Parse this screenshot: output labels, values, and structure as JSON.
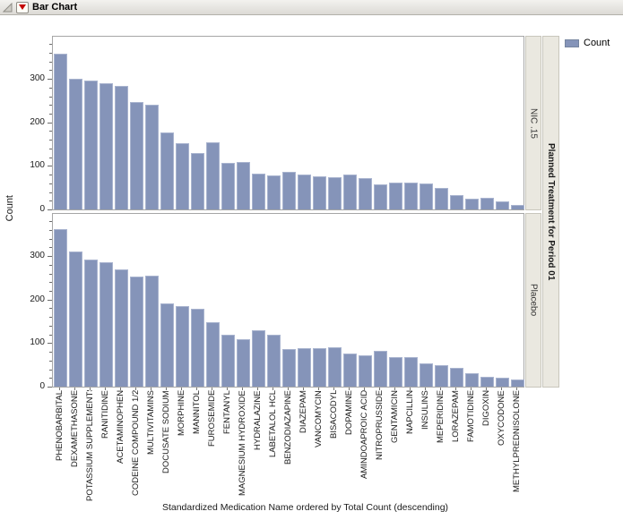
{
  "window": {
    "title": "Bar Chart"
  },
  "legend": {
    "label": "Count",
    "swatch_color": "#8594b9"
  },
  "panel_strip": {
    "title": "Planned Treatment for Period 01",
    "panels": [
      "NIC .15",
      "Placebo"
    ]
  },
  "chart_data": {
    "type": "bar",
    "title": "Bar Chart",
    "xlabel": "Standardized Medication Name ordered by Total Count (descending)",
    "ylabel": "Count",
    "ylim": [
      0,
      397
    ],
    "yticks": [
      0,
      100,
      200,
      300
    ],
    "minor_tick_step": 20,
    "grid": false,
    "legend_position": "top-right",
    "legend_entries": [
      "Count"
    ],
    "panel_by": "Planned Treatment for Period 01",
    "bar_color": "#8594b9",
    "categories": [
      "PHENOBARBITAL",
      "DEXAMETHASONE",
      "POTASSIUM SUPPLEMENTS",
      "RANITIDINE",
      "ACETAMINOPHEN",
      "CODEINE COMPOUND 1/2",
      "MULTIVITAMINS",
      "DOCUSATE SODIUM",
      "MORPHINE",
      "MANNITOL",
      "FUROSEMIDE",
      "FENTANYL",
      "MAGNESIUM HYDROXIDE",
      "HYDRALAZINE",
      "LABETALOL HCL",
      "BENZODIAZAPINE",
      "DIAZEPAM",
      "VANCOMYCIN",
      "BISACODYL",
      "DOPAMINE",
      "AMINDOAPROIC ACID",
      "NITROPRUSSIDE",
      "GENTAMICIN",
      "NAPCILLIN",
      "INSULINS",
      "MEPERIDINE",
      "LORAZEPAM",
      "FAMOTIDINE",
      "DIGOXIN",
      "OXYCODONE",
      "METHYLPREDNISOLONE"
    ],
    "series": [
      {
        "name": "NIC .15",
        "values": [
          357,
          300,
          296,
          290,
          284,
          246,
          240,
          176,
          153,
          129,
          155,
          106,
          109,
          82,
          78,
          87,
          80,
          77,
          75,
          80,
          72,
          57,
          62,
          61,
          60,
          50,
          32,
          25,
          27,
          18,
          11
        ]
      },
      {
        "name": "Placebo",
        "values": [
          362,
          310,
          292,
          285,
          270,
          252,
          256,
          191,
          186,
          178,
          149,
          119,
          109,
          130,
          119,
          86,
          89,
          88,
          90,
          76,
          71,
          82,
          67,
          67,
          53,
          49,
          44,
          31,
          22,
          20,
          17
        ]
      }
    ]
  }
}
